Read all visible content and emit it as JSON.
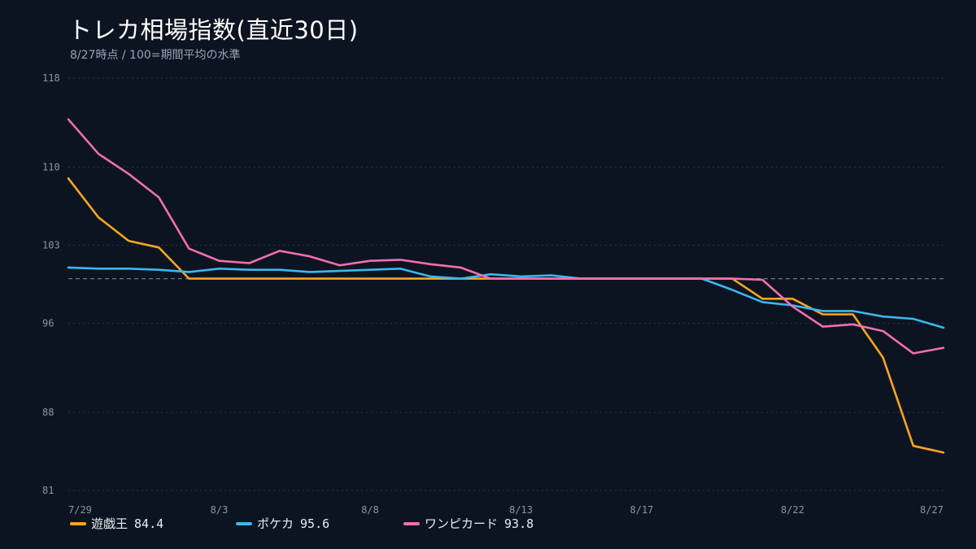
{
  "header": {
    "title": "トレカ相場指数(直近30日)",
    "subtitle": "8/27時点 / 100=期間平均の水準"
  },
  "colors": {
    "background": "#0d1421",
    "grid": "#2a3344",
    "baseline": "#6b7385",
    "tick_text": "#8b93a5"
  },
  "legend": [
    {
      "name": "遊戯王",
      "value": "84.4",
      "color": "#f5a623"
    },
    {
      "name": "ポケカ",
      "value": "95.6",
      "color": "#3ab8f0"
    },
    {
      "name": "ワンピカード",
      "value": "93.8",
      "color": "#f06fb0"
    }
  ],
  "chart_data": {
    "type": "line",
    "title": "トレカ相場指数(直近30日)",
    "subtitle": "8/27時点 / 100=期間平均の水準",
    "xlabel": "",
    "ylabel": "",
    "x": [
      "7/29",
      "7/30",
      "7/31",
      "8/1",
      "8/2",
      "8/3",
      "8/4",
      "8/5",
      "8/6",
      "8/7",
      "8/8",
      "8/9",
      "8/10",
      "8/11",
      "8/12",
      "8/13",
      "8/14",
      "8/15",
      "8/16",
      "8/17",
      "8/18",
      "8/19",
      "8/20",
      "8/21",
      "8/22",
      "8/23",
      "8/24",
      "8/25",
      "8/26",
      "8/27"
    ],
    "x_ticks": [
      "7/29",
      "8/3",
      "8/8",
      "8/13",
      "8/17",
      "8/22",
      "8/27"
    ],
    "y_ticks": [
      118,
      110,
      103,
      96,
      88,
      81
    ],
    "ylim": [
      81,
      118
    ],
    "baseline": 100,
    "grid": true,
    "legend_position": "bottom",
    "series": [
      {
        "name": "遊戯王",
        "color": "#f5a623",
        "values": [
          109.0,
          105.5,
          103.4,
          102.8,
          100.0,
          100.0,
          100.0,
          100.0,
          100.0,
          100.0,
          100.0,
          100.0,
          100.0,
          100.0,
          100.0,
          100.0,
          100.0,
          100.0,
          100.0,
          100.0,
          100.0,
          100.0,
          100.0,
          98.2,
          98.2,
          96.8,
          96.8,
          92.9,
          85.0,
          84.4
        ]
      },
      {
        "name": "ポケカ",
        "color": "#3ab8f0",
        "values": [
          101.0,
          100.9,
          100.9,
          100.8,
          100.6,
          100.9,
          100.8,
          100.8,
          100.6,
          100.7,
          100.8,
          100.9,
          100.2,
          100.0,
          100.4,
          100.2,
          100.3,
          100.0,
          100.0,
          100.0,
          100.0,
          100.0,
          99.0,
          97.9,
          97.6,
          97.1,
          97.1,
          96.6,
          96.4,
          95.6
        ]
      },
      {
        "name": "ワンピカード",
        "color": "#f06fb0",
        "values": [
          114.3,
          111.2,
          109.4,
          107.3,
          102.7,
          101.6,
          101.4,
          102.5,
          102.0,
          101.2,
          101.6,
          101.7,
          101.3,
          101.0,
          100.0,
          100.0,
          100.0,
          100.0,
          100.0,
          100.0,
          100.0,
          100.0,
          100.0,
          99.9,
          97.5,
          95.7,
          95.9,
          95.3,
          93.3,
          93.8
        ]
      }
    ]
  }
}
